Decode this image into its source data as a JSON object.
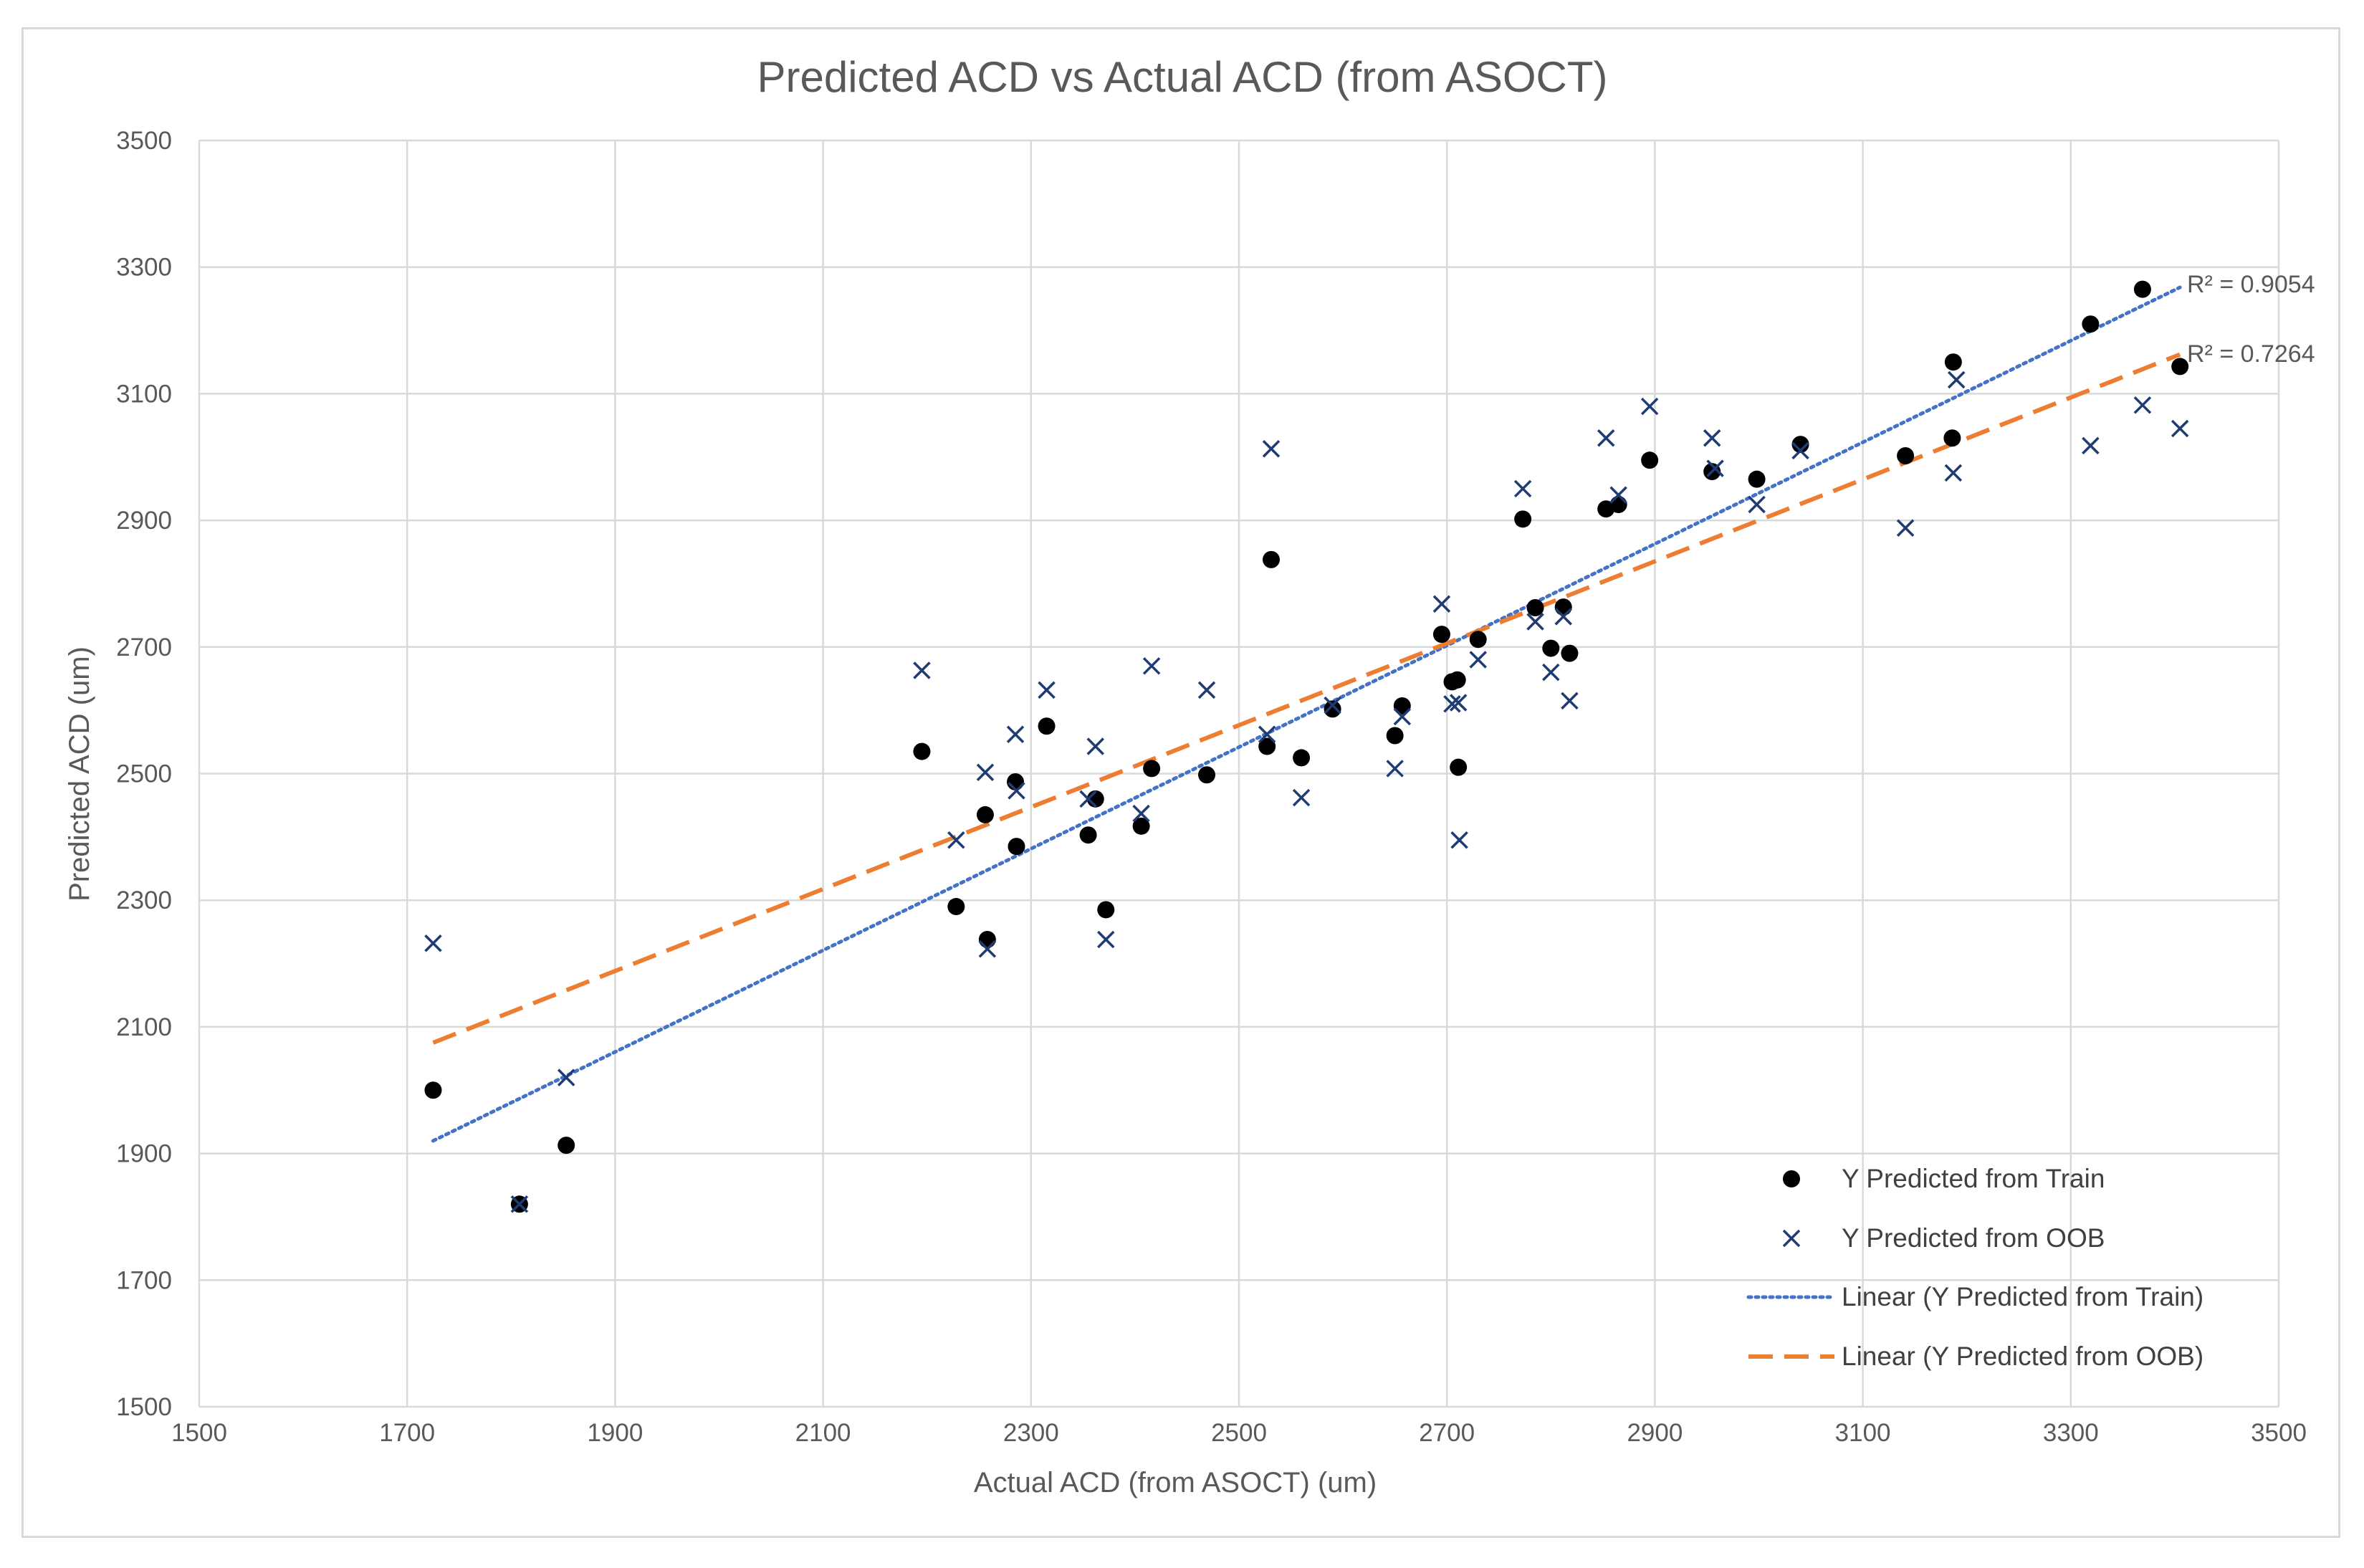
{
  "chart_data": {
    "type": "scatter",
    "title": "Predicted ACD vs Actual ACD (from ASOCT)",
    "xlabel": "Actual ACD (from ASOCT) (um)",
    "ylabel": "Predicted ACD (um)",
    "xlim": [
      1500,
      3500
    ],
    "ylim": [
      1500,
      3500
    ],
    "x_ticks": [
      "1500",
      "1700",
      "1900",
      "2100",
      "2300",
      "2500",
      "2700",
      "2900",
      "3100",
      "3300",
      "3500"
    ],
    "y_ticks": [
      "1500",
      "1700",
      "1900",
      "2100",
      "2300",
      "2500",
      "2700",
      "2900",
      "3100",
      "3300",
      "3500"
    ],
    "grid": true,
    "legend_position": "bottom-right",
    "colors": {
      "train": "#000000",
      "oob": "#1f3b73",
      "train_trend": "#4472c4",
      "oob_trend": "#ed7d31",
      "grid": "#d9d9d9",
      "text": "#595959"
    },
    "series": [
      {
        "name": "Y Predicted from Train",
        "marker": "circle",
        "points": [
          [
            1725,
            2000
          ],
          [
            1808,
            1820
          ],
          [
            1853,
            1913
          ],
          [
            2195,
            2535
          ],
          [
            2228,
            2290
          ],
          [
            2256,
            2435
          ],
          [
            2258,
            2238
          ],
          [
            2285,
            2487
          ],
          [
            2286,
            2385
          ],
          [
            2315,
            2575
          ],
          [
            2355,
            2403
          ],
          [
            2362,
            2460
          ],
          [
            2372,
            2285
          ],
          [
            2406,
            2417
          ],
          [
            2416,
            2508
          ],
          [
            2469,
            2498
          ],
          [
            2527,
            2543
          ],
          [
            2531,
            2838
          ],
          [
            2560,
            2525
          ],
          [
            2590,
            2602
          ],
          [
            2650,
            2560
          ],
          [
            2657,
            2607
          ],
          [
            2695,
            2720
          ],
          [
            2705,
            2645
          ],
          [
            2710,
            2648
          ],
          [
            2711,
            2510
          ],
          [
            2730,
            2712
          ],
          [
            2773,
            2902
          ],
          [
            2785,
            2762
          ],
          [
            2800,
            2698
          ],
          [
            2812,
            2763
          ],
          [
            2818,
            2690
          ],
          [
            2853,
            2918
          ],
          [
            2865,
            2925
          ],
          [
            2895,
            2995
          ],
          [
            2955,
            2977
          ],
          [
            2998,
            2965
          ],
          [
            3040,
            3020
          ],
          [
            3141,
            3002
          ],
          [
            3187,
            3150
          ],
          [
            3186,
            3030
          ],
          [
            3319,
            3210
          ],
          [
            3369,
            3265
          ],
          [
            3405,
            3143
          ]
        ]
      },
      {
        "name": "Y Predicted from OOB",
        "marker": "x",
        "points": [
          [
            1725,
            2232
          ],
          [
            1808,
            1820
          ],
          [
            1853,
            2020
          ],
          [
            2195,
            2663
          ],
          [
            2228,
            2395
          ],
          [
            2256,
            2502
          ],
          [
            2258,
            2223
          ],
          [
            2285,
            2562
          ],
          [
            2286,
            2473
          ],
          [
            2315,
            2632
          ],
          [
            2355,
            2460
          ],
          [
            2362,
            2543
          ],
          [
            2372,
            2238
          ],
          [
            2406,
            2437
          ],
          [
            2416,
            2670
          ],
          [
            2469,
            2632
          ],
          [
            2527,
            2562
          ],
          [
            2531,
            3013
          ],
          [
            2560,
            2462
          ],
          [
            2590,
            2608
          ],
          [
            2650,
            2508
          ],
          [
            2657,
            2590
          ],
          [
            2695,
            2768
          ],
          [
            2705,
            2610
          ],
          [
            2711,
            2612
          ],
          [
            2712,
            2395
          ],
          [
            2730,
            2680
          ],
          [
            2773,
            2950
          ],
          [
            2785,
            2740
          ],
          [
            2800,
            2660
          ],
          [
            2812,
            2748
          ],
          [
            2818,
            2615
          ],
          [
            2853,
            3030
          ],
          [
            2865,
            2940
          ],
          [
            2895,
            3080
          ],
          [
            2955,
            3030
          ],
          [
            2958,
            2982
          ],
          [
            2998,
            2925
          ],
          [
            3040,
            3010
          ],
          [
            3141,
            2888
          ],
          [
            3187,
            2975
          ],
          [
            3190,
            3122
          ],
          [
            3319,
            3018
          ],
          [
            3369,
            3082
          ],
          [
            3405,
            3045
          ]
        ]
      }
    ],
    "trendlines": [
      {
        "name": "Linear (Y Predicted from Train)",
        "style": "dotted",
        "x": [
          1725,
          3405
        ],
        "y": [
          1920,
          3268
        ],
        "r2": "R² = 0.9054"
      },
      {
        "name": "Linear (Y Predicted from OOB)",
        "style": "dashed",
        "x": [
          1725,
          3405
        ],
        "y": [
          2075,
          3162
        ],
        "r2": "R² = 0.7264"
      }
    ]
  }
}
